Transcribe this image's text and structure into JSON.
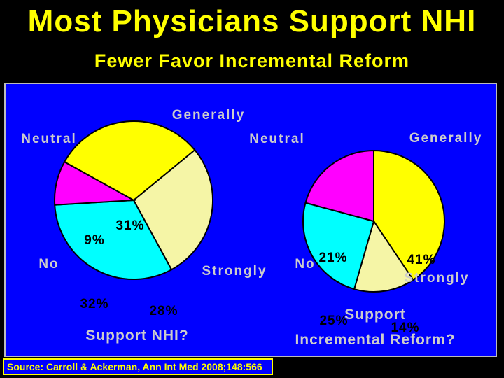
{
  "title": "Most Physicians Support NHI",
  "subtitle": "Fewer Favor Incremental Reform",
  "source": "Source: Carroll & Ackerman, Ann Int Med 2008;148:566",
  "colors": {
    "background": "#000000",
    "panel": "#0000ff",
    "title": "#ffff00",
    "labels": "#cccccc",
    "percent_labels": "#000000",
    "generally": "#ffff00",
    "strongly": "#f5f5a6",
    "no": "#00ffff",
    "neutral": "#ff00ff"
  },
  "chart_data": [
    {
      "type": "pie",
      "title": "Support NHI?",
      "slices": [
        {
          "label": "Generally",
          "value": 31,
          "value_label": "31%",
          "color": "#ffff00"
        },
        {
          "label": "Strongly",
          "value": 28,
          "value_label": "28%",
          "color": "#f5f5a6"
        },
        {
          "label": "No",
          "value": 32,
          "value_label": "32%",
          "color": "#00ffff"
        },
        {
          "label": "Neutral",
          "value": 9,
          "value_label": "9%",
          "color": "#ff00ff"
        }
      ]
    },
    {
      "type": "pie",
      "title": "Support Incremental Reform?",
      "slices": [
        {
          "label": "Generally",
          "value": 41,
          "value_label": "41%",
          "color": "#ffff00"
        },
        {
          "label": "Strongly",
          "value": 14,
          "value_label": "14%",
          "color": "#f5f5a6"
        },
        {
          "label": "No",
          "value": 25,
          "value_label": "25%",
          "color": "#00ffff"
        },
        {
          "label": "Neutral",
          "value": 21,
          "value_label": "21%",
          "color": "#ff00ff"
        }
      ]
    }
  ]
}
